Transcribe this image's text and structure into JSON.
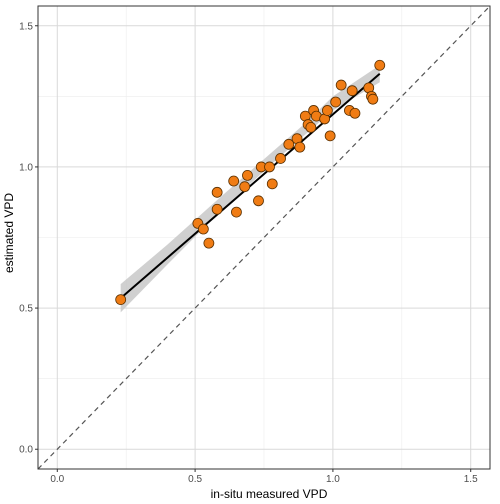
{
  "chart_data": {
    "type": "scatter",
    "title": "",
    "xlabel": "in-situ measured VPD",
    "ylabel": "estimated VPD",
    "xlim": [
      -0.07,
      1.57
    ],
    "ylim": [
      -0.07,
      1.57
    ],
    "xticks": [
      "0.0",
      "0.5",
      "1.0",
      "1.5"
    ],
    "yticks": [
      "0.0",
      "0.5",
      "1.0",
      "1.5"
    ],
    "xtick_values": [
      0.0,
      0.5,
      1.0,
      1.5
    ],
    "ytick_values": [
      0.0,
      0.5,
      1.0,
      1.5
    ],
    "grid": true,
    "identity_line": {
      "style": "dashed",
      "color": "#555555"
    },
    "fit_line": {
      "x": [
        0.23,
        1.17
      ],
      "y": [
        0.535,
        1.33
      ],
      "color": "#000000"
    },
    "confidence_band": {
      "x": [
        0.23,
        0.4,
        0.6,
        0.8,
        0.9,
        1.0,
        1.17
      ],
      "lower": [
        0.485,
        0.655,
        0.85,
        1.03,
        1.115,
        1.2,
        1.3
      ],
      "upper": [
        0.585,
        0.725,
        0.9,
        1.07,
        1.155,
        1.25,
        1.36
      ],
      "color": "#c8c8c8"
    },
    "points_color": "#F07C14",
    "points_edge": "#5a3000",
    "points": [
      {
        "x": 0.23,
        "y": 0.53
      },
      {
        "x": 0.51,
        "y": 0.8
      },
      {
        "x": 0.53,
        "y": 0.78
      },
      {
        "x": 0.55,
        "y": 0.73
      },
      {
        "x": 0.58,
        "y": 0.91
      },
      {
        "x": 0.58,
        "y": 0.85
      },
      {
        "x": 0.64,
        "y": 0.95
      },
      {
        "x": 0.65,
        "y": 0.84
      },
      {
        "x": 0.68,
        "y": 0.93
      },
      {
        "x": 0.69,
        "y": 0.97
      },
      {
        "x": 0.73,
        "y": 0.88
      },
      {
        "x": 0.74,
        "y": 1.0
      },
      {
        "x": 0.77,
        "y": 1.0
      },
      {
        "x": 0.78,
        "y": 0.94
      },
      {
        "x": 0.81,
        "y": 1.03
      },
      {
        "x": 0.84,
        "y": 1.08
      },
      {
        "x": 0.87,
        "y": 1.1
      },
      {
        "x": 0.88,
        "y": 1.07
      },
      {
        "x": 0.9,
        "y": 1.18
      },
      {
        "x": 0.91,
        "y": 1.15
      },
      {
        "x": 0.92,
        "y": 1.14
      },
      {
        "x": 0.93,
        "y": 1.2
      },
      {
        "x": 0.94,
        "y": 1.18
      },
      {
        "x": 0.97,
        "y": 1.17
      },
      {
        "x": 0.98,
        "y": 1.2
      },
      {
        "x": 0.99,
        "y": 1.11
      },
      {
        "x": 1.01,
        "y": 1.23
      },
      {
        "x": 1.03,
        "y": 1.29
      },
      {
        "x": 1.06,
        "y": 1.2
      },
      {
        "x": 1.07,
        "y": 1.27
      },
      {
        "x": 1.08,
        "y": 1.19
      },
      {
        "x": 1.13,
        "y": 1.28
      },
      {
        "x": 1.14,
        "y": 1.25
      },
      {
        "x": 1.145,
        "y": 1.24
      },
      {
        "x": 1.17,
        "y": 1.36
      }
    ]
  }
}
